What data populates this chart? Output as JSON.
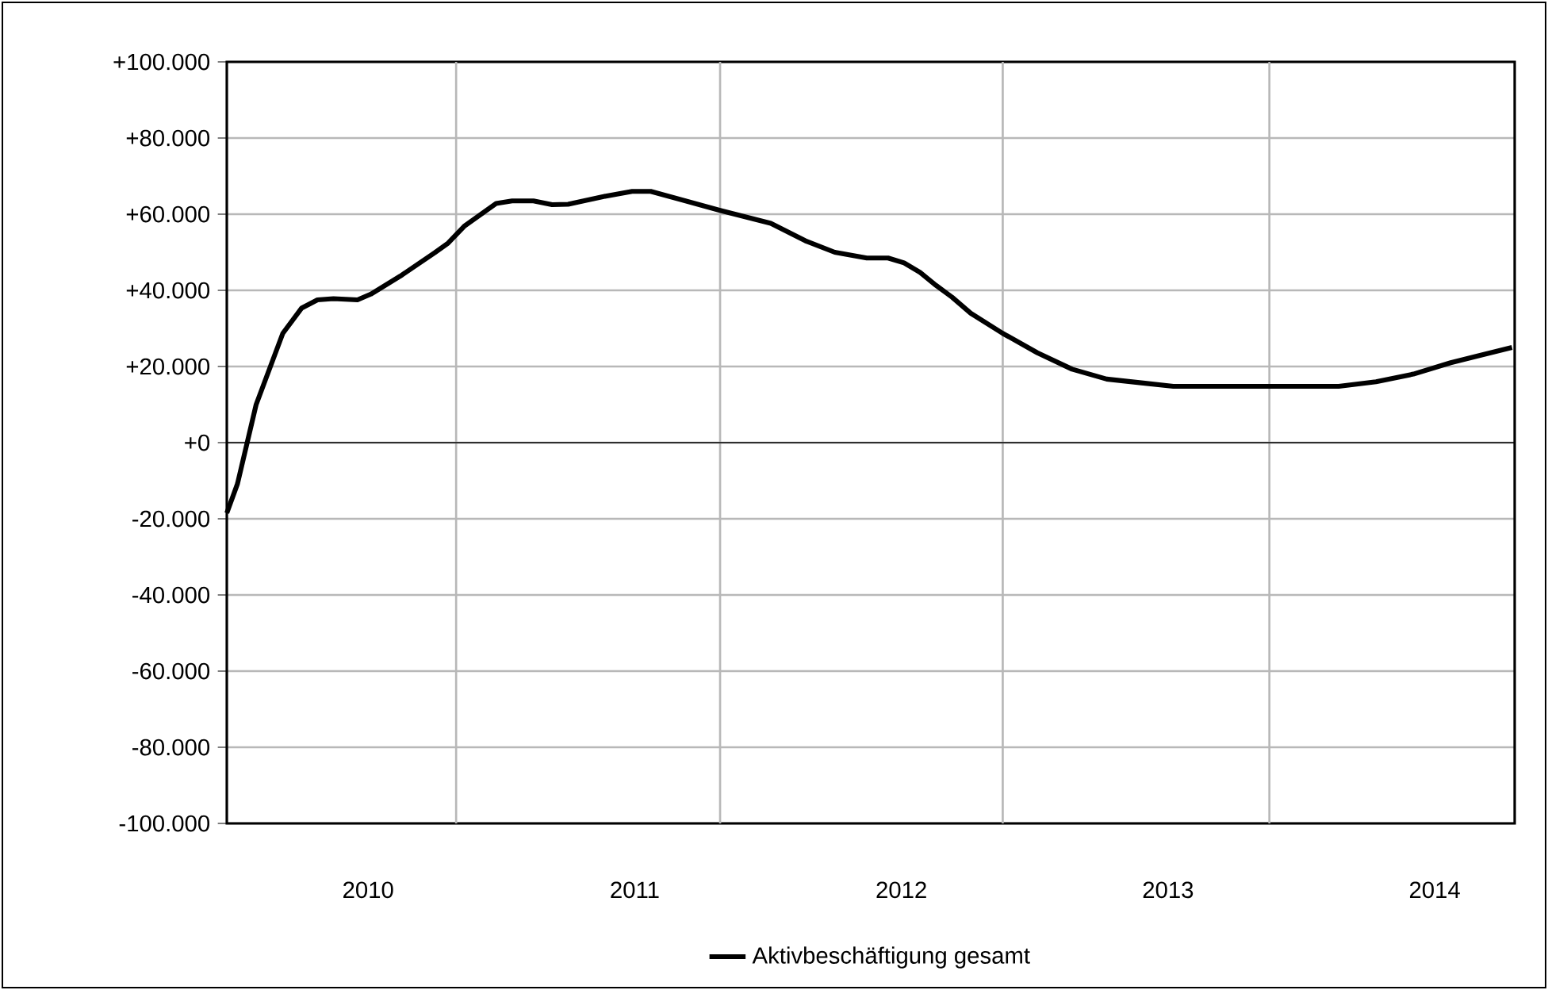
{
  "chart_data": {
    "type": "line",
    "x": [
      2009.47,
      2009.51,
      2009.58,
      2009.68,
      2009.75,
      2009.81,
      2009.87,
      2009.96,
      2010.01,
      2010.12,
      2010.25,
      2010.3,
      2010.36,
      2010.48,
      2010.54,
      2010.62,
      2010.69,
      2010.75,
      2010.88,
      2010.99,
      2011.06,
      2011.32,
      2011.51,
      2011.64,
      2011.75,
      2011.87,
      2011.95,
      2012.01,
      2012.07,
      2012.13,
      2012.19,
      2012.26,
      2012.38,
      2012.51,
      2012.64,
      2012.77,
      2012.9,
      2013.02,
      2013.64,
      2013.78,
      2013.92,
      2014.06,
      2014.17,
      2014.29
    ],
    "series": [
      {
        "name": "Aktivbeschäftigung gesamt",
        "color": "#000000",
        "values": [
          -18500,
          -10800,
          10000,
          28700,
          35300,
          37500,
          37800,
          37500,
          39000,
          43700,
          49900,
          52400,
          56800,
          62800,
          63500,
          63500,
          62500,
          62600,
          64600,
          66000,
          66000,
          61000,
          57600,
          53000,
          50000,
          48500,
          48500,
          47200,
          44700,
          41300,
          38200,
          34000,
          28700,
          23600,
          19300,
          16700,
          15700,
          14800,
          14800,
          16000,
          18000,
          21000,
          22900,
          25000
        ]
      }
    ],
    "xlim": [
      2009.47,
      2014.3
    ],
    "xticks": [
      {
        "value": 2010,
        "label": "2010"
      },
      {
        "value": 2010.33,
        "label": null
      },
      {
        "value": 2011,
        "label": "2011"
      },
      {
        "value": 2011.32,
        "label": null
      },
      {
        "value": 2012,
        "label": "2012"
      },
      {
        "value": 2012.38,
        "label": null
      },
      {
        "value": 2013,
        "label": "2013"
      },
      {
        "value": 2013.38,
        "label": null
      },
      {
        "value": 2014,
        "label": "2014"
      }
    ],
    "ylim": [
      -100000,
      100000
    ],
    "yticks": [
      {
        "value": -100000,
        "label": "-100.000"
      },
      {
        "value": -80000,
        "label": "-80.000"
      },
      {
        "value": -60000,
        "label": "-60.000"
      },
      {
        "value": -40000,
        "label": "-40.000"
      },
      {
        "value": -20000,
        "label": "-20.000"
      },
      {
        "value": 0,
        "label": "+0"
      },
      {
        "value": 20000,
        "label": "+20.000"
      },
      {
        "value": 40000,
        "label": "+40.000"
      },
      {
        "value": 60000,
        "label": "+60.000"
      },
      {
        "value": 80000,
        "label": "+80.000"
      },
      {
        "value": 100000,
        "label": "+100.000"
      }
    ],
    "grid": true,
    "legend": "bottom",
    "marker": "none",
    "line_style": "solid"
  }
}
